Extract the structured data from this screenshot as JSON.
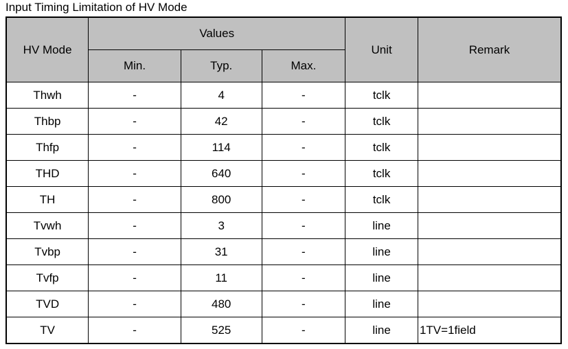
{
  "title": "Input Timing Limitation of HV Mode",
  "header": {
    "mode": "HV Mode",
    "values": "Values",
    "min": "Min.",
    "typ": "Typ.",
    "max": "Max.",
    "unit": "Unit",
    "remark": "Remark"
  },
  "rows": [
    {
      "mode": "Thwh",
      "min": "-",
      "typ": 4,
      "max": "-",
      "unit": "tclk"
    },
    {
      "mode": "Thbp",
      "min": "-",
      "typ": 42,
      "max": "-",
      "unit": "tclk"
    },
    {
      "mode": "Thfp",
      "min": "-",
      "typ": 114,
      "max": "-",
      "unit": "tclk"
    },
    {
      "mode": "THD",
      "min": "-",
      "typ": 640,
      "max": "-",
      "unit": "tclk"
    },
    {
      "mode": "TH",
      "min": "-",
      "typ": 800,
      "max": "-",
      "unit": "tclk"
    },
    {
      "mode": "Tvwh",
      "min": "-",
      "typ": 3,
      "max": "-",
      "unit": "line"
    },
    {
      "mode": "Tvbp",
      "min": "-",
      "typ": 31,
      "max": "-",
      "unit": "line"
    },
    {
      "mode": "Tvfp",
      "min": "-",
      "typ": 11,
      "max": "-",
      "unit": "line"
    },
    {
      "mode": "TVD",
      "min": "-",
      "typ": 480,
      "max": "-",
      "unit": "line"
    },
    {
      "mode": "TV",
      "min": "-",
      "typ": 525,
      "max": "-",
      "unit": "line",
      "remark": "1TV=1field"
    }
  ]
}
